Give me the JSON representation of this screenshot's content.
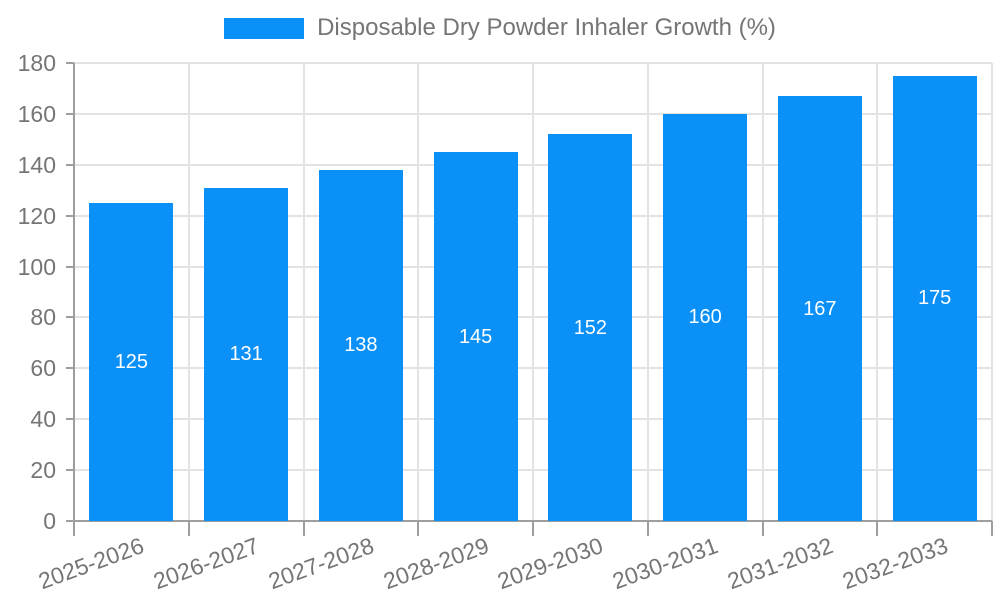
{
  "chart_data": {
    "type": "bar",
    "legend_label": "Disposable Dry Powder Inhaler Growth (%)",
    "categories": [
      "2025-2026",
      "2026-2027",
      "2027-2028",
      "2028-2029",
      "2029-2030",
      "2030-2031",
      "2031-2032",
      "2032-2033"
    ],
    "values": [
      125,
      131,
      138,
      145,
      152,
      160,
      167,
      175
    ],
    "yticks": [
      0,
      20,
      40,
      60,
      80,
      100,
      120,
      140,
      160,
      180
    ],
    "ylim": [
      0,
      180
    ],
    "grid": true,
    "legend_position": "top-center",
    "x_label_rotation_deg": -20,
    "colors": {
      "bar": "#0b90f8",
      "grid": "#e3e3e3",
      "axis": "#9e9e9e",
      "text": "#757575",
      "value_text": "#ffffff"
    }
  }
}
